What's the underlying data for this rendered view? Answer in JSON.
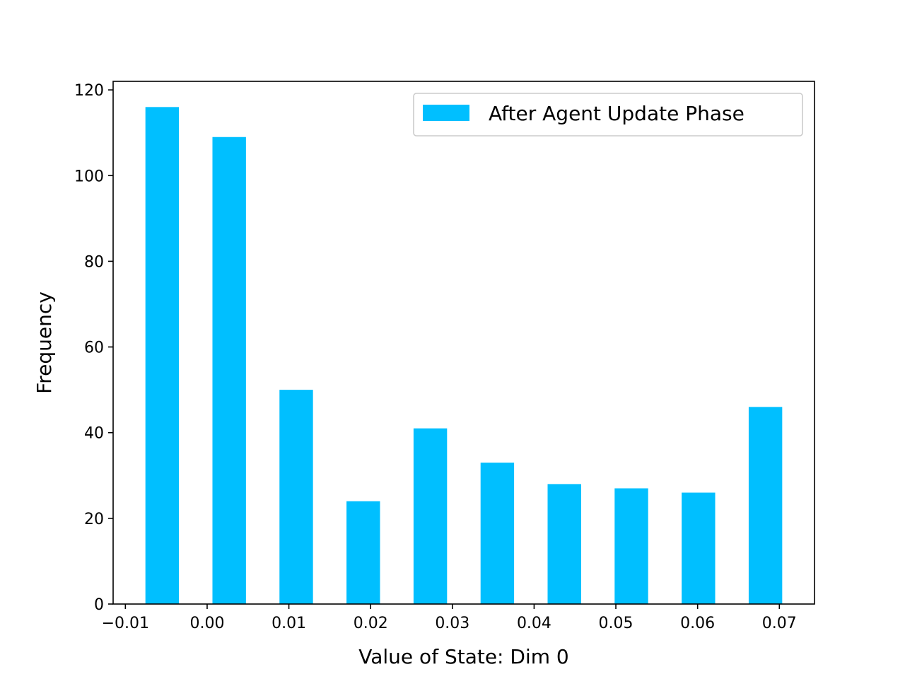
{
  "chart_data": {
    "type": "bar",
    "x": [
      -0.0055,
      0.0027,
      0.0109,
      0.0191,
      0.0273,
      0.0355,
      0.0437,
      0.0519,
      0.0601,
      0.0683
    ],
    "values": [
      116,
      109,
      50,
      24,
      41,
      33,
      28,
      27,
      26,
      46
    ],
    "bar_width": 0.0041,
    "series": [
      {
        "name": "After Agent Update Phase",
        "values": [
          116,
          109,
          50,
          24,
          41,
          33,
          28,
          27,
          26,
          46
        ]
      }
    ],
    "xlabel": "Value of State: Dim 0",
    "ylabel": "Frequency",
    "xlim": [
      -0.0115,
      0.0743
    ],
    "ylim": [
      0,
      122
    ],
    "xticks": [
      -0.01,
      0.0,
      0.01,
      0.02,
      0.03,
      0.04,
      0.05,
      0.06,
      0.07
    ],
    "xtick_labels": [
      "−0.01",
      "0.00",
      "0.01",
      "0.02",
      "0.03",
      "0.04",
      "0.05",
      "0.06",
      "0.07"
    ],
    "yticks": [
      0,
      20,
      40,
      60,
      80,
      100,
      120
    ],
    "ytick_labels": [
      "0",
      "20",
      "40",
      "60",
      "80",
      "100",
      "120"
    ],
    "legend_position": "top-right",
    "grid": false,
    "colors": {
      "bar": "#00bfff"
    }
  }
}
